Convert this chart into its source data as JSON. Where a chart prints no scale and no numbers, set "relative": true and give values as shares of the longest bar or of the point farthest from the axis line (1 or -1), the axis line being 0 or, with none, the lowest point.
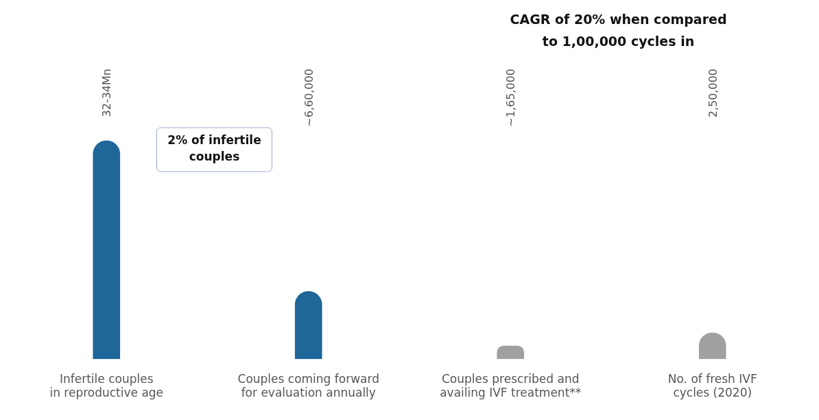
{
  "chart_data": {
    "type": "bar",
    "relative": true,
    "categories": [
      "Infertile couples in reproductive age",
      "Couples coming forward for evaluation annually",
      "Couples prescribed and availing IVF treatment**",
      "No. of fresh IVF cycles (2020)"
    ],
    "values": [
      1,
      0.31,
      0.06,
      0.12
    ],
    "colors": [
      "#1f6699",
      "#1f6699",
      "#a0a0a0",
      "#a0a0a0"
    ],
    "annotations": [
      "2% of infertile couples",
      "CAGR of 20% when compared to 1,00,000 cycles in",
      "32-34Mn",
      "~6,60,000",
      "~1,65,000",
      "2,50,000"
    ],
    "grid": false,
    "legend": false
  }
}
